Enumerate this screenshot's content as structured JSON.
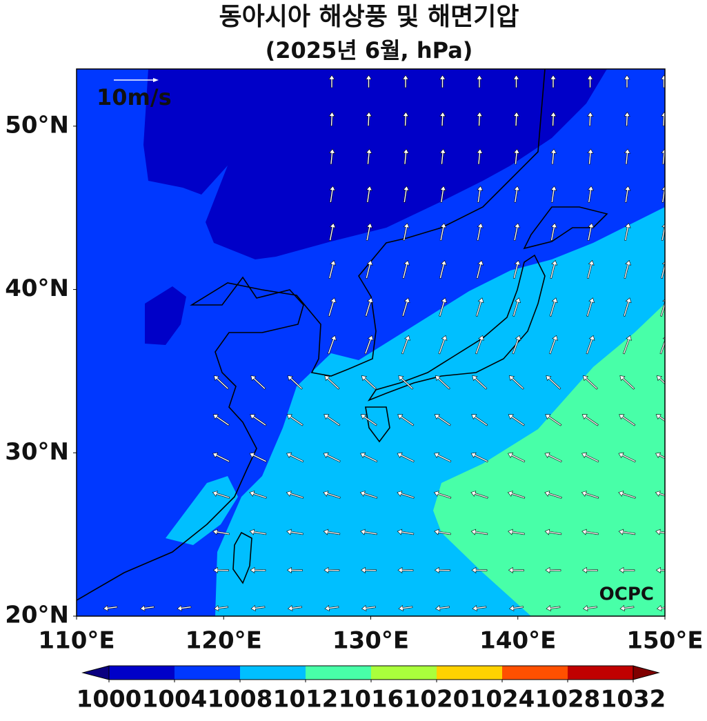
{
  "title": "동아시아 해상풍 및 해면기압",
  "subtitle": "(2025년 6월, hPa)",
  "map": {
    "xlim": [
      110,
      150
    ],
    "ylim": [
      20,
      53.5
    ],
    "xticks": [
      {
        "value": 110,
        "label": "110°E"
      },
      {
        "value": 120,
        "label": "120°E"
      },
      {
        "value": 130,
        "label": "130°E"
      },
      {
        "value": 140,
        "label": "140°E"
      },
      {
        "value": 150,
        "label": "150°E"
      }
    ],
    "yticks": [
      {
        "value": 20,
        "label": "20°N"
      },
      {
        "value": 30,
        "label": "30°N"
      },
      {
        "value": 40,
        "label": "40°N"
      },
      {
        "value": 50,
        "label": "50°N"
      }
    ],
    "reference_vector": "10m/s",
    "logo": "OCPC"
  },
  "colorbar": {
    "levels": [
      1000,
      1004,
      1008,
      1012,
      1016,
      1020,
      1024,
      1028,
      1032
    ],
    "colors": [
      "#0000c8",
      "#0038ff",
      "#00bfff",
      "#48ffa8",
      "#aaff3c",
      "#ffd200",
      "#ff5000",
      "#c00000"
    ],
    "under_color": "#0a0080",
    "over_color": "#800000"
  }
}
